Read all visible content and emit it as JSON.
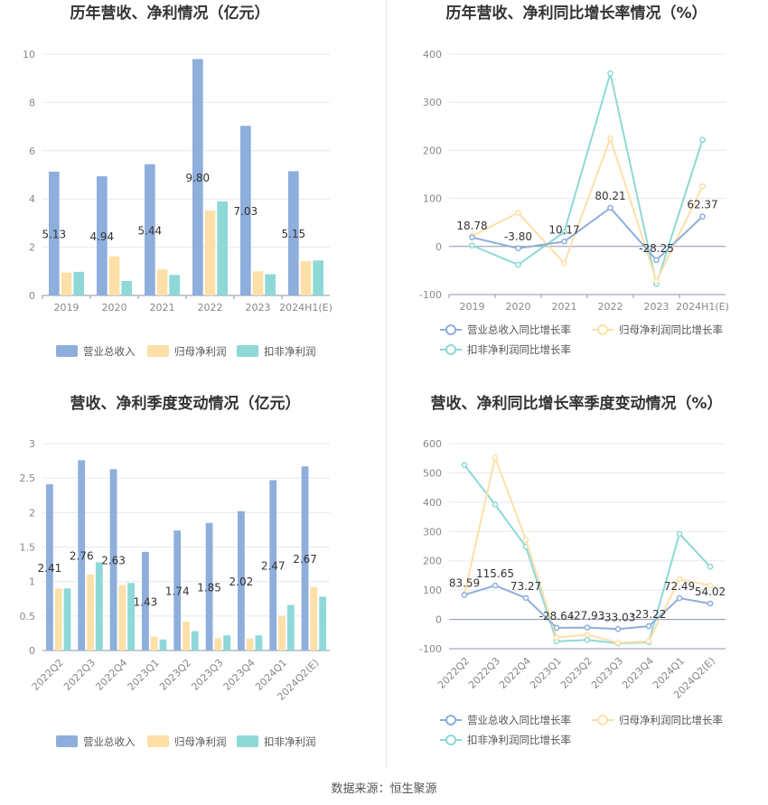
{
  "source_prefix": "数据来源：",
  "source_name": "恒生聚源",
  "colors": {
    "revenue": "#8eaedc",
    "net_profit": "#fde0a8",
    "deducted_profit": "#8ed8d8",
    "grid": "#e4e8f0",
    "axis": "#8a94a8"
  },
  "chart_data": [
    {
      "type": "bar",
      "title": "历年营收、净利情况（亿元）",
      "categories": [
        "2019",
        "2020",
        "2021",
        "2022",
        "2023",
        "2024H1(E)"
      ],
      "series": [
        {
          "name": "营业总收入",
          "values": [
            5.13,
            4.94,
            5.44,
            9.8,
            7.03,
            5.15
          ],
          "labels": [
            "5.13",
            "4.94",
            "5.44",
            "9.80",
            "7.03",
            "5.15"
          ]
        },
        {
          "name": "归母净利润",
          "values": [
            0.95,
            1.62,
            1.08,
            3.52,
            1.0,
            1.42
          ]
        },
        {
          "name": "扣非净利润",
          "values": [
            0.98,
            0.6,
            0.85,
            3.9,
            0.88,
            1.45
          ]
        }
      ],
      "ylim": [
        0,
        10
      ],
      "yticks": [
        "0",
        "2",
        "4",
        "6",
        "8",
        "10"
      ],
      "grid": true,
      "legend": "bottom"
    },
    {
      "type": "line",
      "title": "历年营收、净利同比增长率情况（%）",
      "categories": [
        "2019",
        "2020",
        "2021",
        "2022",
        "2023",
        "2024H1(E)"
      ],
      "series": [
        {
          "name": "营业总收入同比增长率",
          "values": [
            18.78,
            -3.8,
            10.17,
            80.21,
            -28.25,
            62.37
          ],
          "labels": [
            "18.78",
            "-3.80",
            "10.17",
            "80.21",
            "-28.25",
            "62.37"
          ]
        },
        {
          "name": "归母净利润同比增长率",
          "values": [
            22,
            70,
            -35,
            225,
            -72,
            125
          ]
        },
        {
          "name": "扣非净利润同比增长率",
          "values": [
            2,
            -38,
            30,
            360,
            -78,
            222
          ]
        }
      ],
      "ylim": [
        -100,
        400
      ],
      "yticks": [
        "-100",
        "0",
        "100",
        "200",
        "300",
        "400"
      ],
      "grid": true,
      "legend": "bottom"
    },
    {
      "type": "bar",
      "title": "营收、净利季度变动情况（亿元）",
      "categories": [
        "2022Q2",
        "2022Q3",
        "2022Q4",
        "2023Q1",
        "2023Q2",
        "2023Q3",
        "2023Q4",
        "2024Q1",
        "2024Q2(E)"
      ],
      "series": [
        {
          "name": "营业总收入",
          "values": [
            2.41,
            2.76,
            2.63,
            1.43,
            1.74,
            1.85,
            2.02,
            2.47,
            2.67
          ],
          "labels": [
            "2.41",
            "2.76",
            "2.63",
            "1.43",
            "1.74",
            "1.85",
            "2.02",
            "2.47",
            "2.67"
          ]
        },
        {
          "name": "归母净利润",
          "values": [
            0.9,
            1.1,
            0.95,
            0.2,
            0.42,
            0.18,
            0.17,
            0.5,
            0.92
          ]
        },
        {
          "name": "扣非净利润",
          "values": [
            0.9,
            1.28,
            0.98,
            0.16,
            0.28,
            0.22,
            0.22,
            0.66,
            0.78
          ]
        }
      ],
      "ylim": [
        0,
        3
      ],
      "yticks": [
        "0",
        "0.5",
        "1",
        "1.5",
        "2",
        "2.5",
        "3"
      ],
      "grid": true,
      "legend": "bottom"
    },
    {
      "type": "line",
      "title": "营收、净利同比增长率季度变动情况（%）",
      "categories": [
        "2022Q2",
        "2022Q3",
        "2022Q4",
        "2023Q1",
        "2023Q2",
        "2023Q3",
        "2023Q4",
        "2024Q1",
        "2024Q2(E)"
      ],
      "series": [
        {
          "name": "营业总收入同比增长率",
          "values": [
            83.59,
            115.65,
            73.27,
            -28.64,
            -27.93,
            -33.03,
            -23.22,
            72.49,
            54.02
          ],
          "labels": [
            "83.59",
            "115.65",
            "73.27",
            "-28.64",
            "-27.93",
            "-33.03",
            "-23.22",
            "72.49",
            "54.02"
          ]
        },
        {
          "name": "归母净利润同比增长率",
          "values": [
            85,
            552,
            272,
            -62,
            -52,
            -80,
            -75,
            138,
            115
          ]
        },
        {
          "name": "扣非净利润同比增长率",
          "values": [
            527,
            392,
            248,
            -75,
            -70,
            -82,
            -78,
            292,
            180
          ]
        }
      ],
      "ylim": [
        -100,
        600
      ],
      "yticks": [
        "-100",
        "0",
        "100",
        "200",
        "300",
        "400",
        "500",
        "600"
      ],
      "grid": true,
      "legend": "bottom"
    }
  ]
}
